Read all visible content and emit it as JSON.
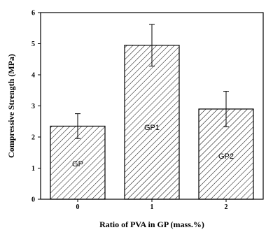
{
  "chart_data": {
    "type": "bar",
    "categories": [
      "0",
      "1",
      "2"
    ],
    "values": [
      2.35,
      4.95,
      2.9
    ],
    "errors": [
      0.4,
      0.67,
      0.57
    ],
    "bar_labels": [
      "GP",
      "GP1",
      "GP2"
    ],
    "xlabel": "Ratio of PVA in GP (mass.%)",
    "ylabel": "Compressive Strength (MPa)",
    "ylim": [
      0,
      6
    ],
    "yticks": [
      0,
      1,
      2,
      3,
      4,
      5,
      6
    ],
    "bar_fill": "hatched",
    "grid": false,
    "legend": "none",
    "colors": {
      "bar_edge": "#000000",
      "hatch": "#000000",
      "background": "#ffffff"
    }
  }
}
